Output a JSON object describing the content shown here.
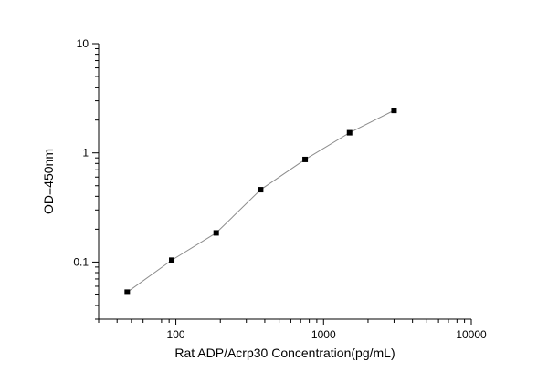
{
  "chart_data": {
    "type": "scatter",
    "title": "",
    "xlabel": "Rat ADP/Acrp30 Concentration(pg/mL)",
    "ylabel": "OD=450nm",
    "x_scale": "log",
    "y_scale": "log",
    "xlim": [
      30,
      10000
    ],
    "ylim": [
      0.03,
      10
    ],
    "x_ticks": [
      100,
      1000,
      10000
    ],
    "x_tick_labels": [
      "100",
      "1000",
      "10000"
    ],
    "y_ticks": [
      0.1,
      1,
      10
    ],
    "y_tick_labels": [
      "0.1",
      "1",
      "10"
    ],
    "grid": false,
    "legend": "none",
    "series": [
      {
        "x": [
          46.875,
          93.75,
          187.5,
          375,
          750,
          1500,
          3000
        ],
        "y": [
          0.053,
          0.104,
          0.185,
          0.46,
          0.87,
          1.53,
          2.45
        ],
        "marker": "square",
        "line": true,
        "marker_color": "#000000",
        "line_color": "#8c8c8c"
      }
    ]
  }
}
